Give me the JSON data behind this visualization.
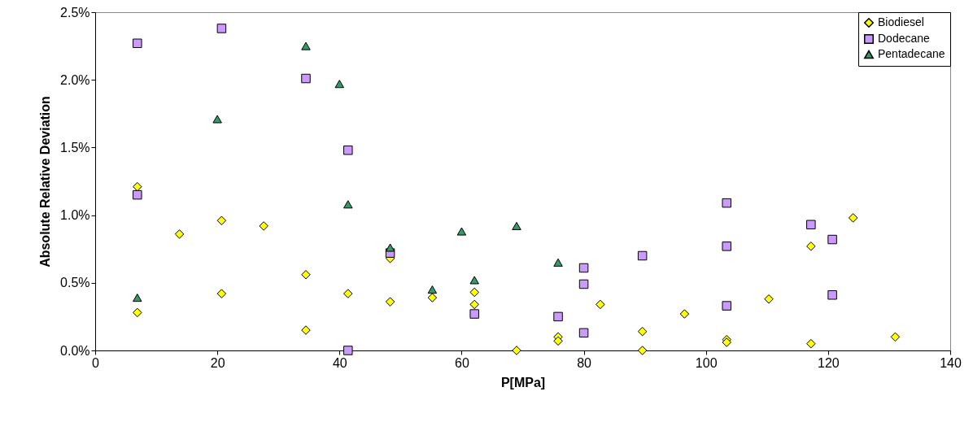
{
  "chart_data": {
    "type": "scatter",
    "xlabel": "P[MPa]",
    "ylabel": "Absolute Relative Deviation",
    "xlim": [
      0,
      140
    ],
    "xticks": [
      0,
      20,
      40,
      60,
      80,
      100,
      120,
      140
    ],
    "ylim": [
      0,
      2.5
    ],
    "yticks": [
      {
        "value": 0,
        "label": "0.0%"
      },
      {
        "value": 0.5,
        "label": "0.5%"
      },
      {
        "value": 1,
        "label": "1.0%"
      },
      {
        "value": 1.5,
        "label": "1.5%"
      },
      {
        "value": 2,
        "label": "2.0%"
      },
      {
        "value": 2.5,
        "label": "2.5%"
      }
    ],
    "grid": false,
    "legend": "top right",
    "series": [
      {
        "name": "Biodiesel",
        "color": "#ffff00",
        "marker": "diamond",
        "x": [
          6.9,
          6.9,
          13.8,
          20.7,
          20.7,
          27.6,
          34.5,
          34.5,
          41.4,
          48.3,
          48.3,
          55.2,
          62.1,
          62.1,
          69,
          75.8,
          75.8,
          82.7,
          89.6,
          89.6,
          96.5,
          103.4,
          103.4,
          110.3,
          117.2,
          117.2,
          124.1,
          131
        ],
        "values": [
          0.28,
          1.21,
          0.86,
          0.96,
          0.42,
          0.92,
          0.56,
          0.15,
          0.42,
          0.36,
          0.68,
          0.39,
          0.43,
          0.34,
          0.0,
          0.1,
          0.07,
          0.34,
          0.14,
          0.0,
          0.27,
          0.08,
          0.06,
          0.38,
          0.77,
          0.05,
          0.98,
          0.1
        ]
      },
      {
        "name": "Dodecane",
        "color": "#cc99ff",
        "marker": "square",
        "x": [
          6.9,
          6.9,
          20.7,
          34.5,
          41.4,
          41.4,
          48.3,
          62.1,
          75.8,
          80,
          80,
          80,
          89.6,
          103.4,
          103.4,
          103.4,
          117.2,
          120.7,
          120.7
        ],
        "values": [
          2.27,
          1.15,
          2.38,
          2.01,
          1.48,
          0.0,
          0.72,
          0.27,
          0.25,
          0.61,
          0.49,
          0.13,
          0.7,
          1.09,
          0.77,
          0.33,
          0.93,
          0.82,
          0.41
        ]
      },
      {
        "name": "Pentadecane",
        "color": "#339966",
        "marker": "triangle",
        "x": [
          6.9,
          20,
          34.5,
          40,
          41.4,
          48.3,
          55.2,
          60,
          62.1,
          69,
          75.8
        ],
        "values": [
          0.39,
          1.71,
          2.25,
          1.97,
          1.08,
          0.76,
          0.45,
          0.88,
          0.52,
          0.92,
          0.65
        ]
      }
    ]
  }
}
